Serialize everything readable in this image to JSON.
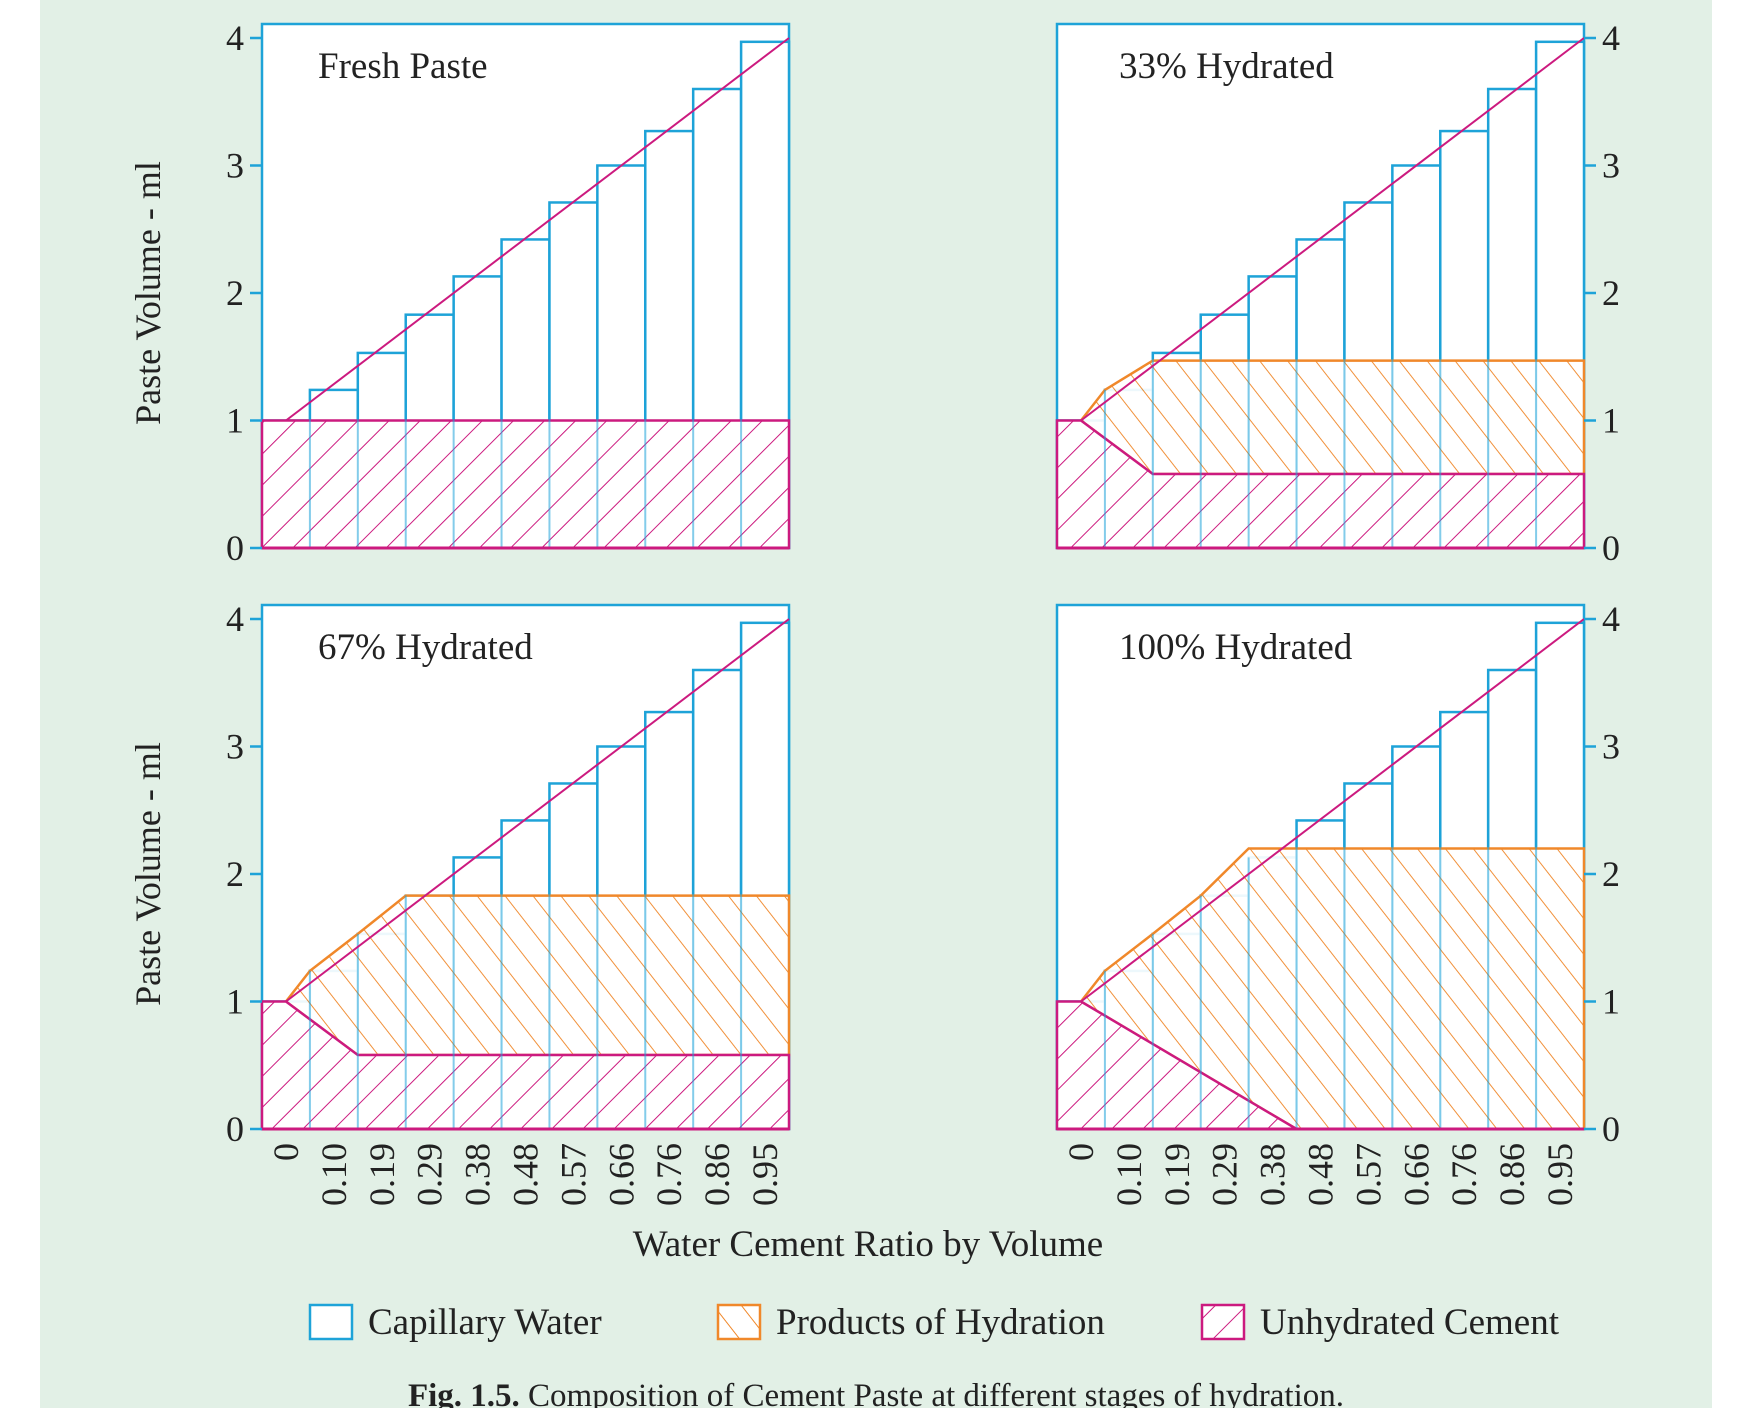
{
  "colors": {
    "background": "#e2f0e6",
    "capillary_water": "#1ea3d8",
    "products_of_hydration": "#f0882a",
    "unhydrated_cement": "#cc1a7f",
    "text": "#222222"
  },
  "chart_data": [
    {
      "type": "bar",
      "title": "Fresh Paste",
      "ylabel": "Paste Volume - ml",
      "xlabel": "",
      "ylim": [
        0,
        4
      ],
      "yticks": [
        "0",
        "1",
        "2",
        "3",
        "4"
      ],
      "y_axis_side": "left",
      "categories": [
        "0",
        "0.10",
        "0.19",
        "0.29",
        "0.38",
        "0.48",
        "0.57",
        "0.66",
        "0.76",
        "0.86",
        "0.95"
      ],
      "total_values": [
        1.0,
        1.24,
        1.53,
        1.83,
        2.13,
        2.42,
        2.71,
        3.0,
        3.27,
        3.6,
        3.97
      ],
      "unhydrated_cement": 1.0,
      "products_of_hydration_top": [
        1.0,
        1.0,
        1.0,
        1.0,
        1.0,
        1.0,
        1.0,
        1.0,
        1.0,
        1.0,
        1.0
      ]
    },
    {
      "type": "bar",
      "title": "33% Hydrated",
      "ylabel": "",
      "xlabel": "",
      "ylim": [
        0,
        4
      ],
      "yticks": [
        "0",
        "1",
        "2",
        "3",
        "4"
      ],
      "y_axis_side": "right",
      "categories": [
        "0",
        "0.10",
        "0.19",
        "0.29",
        "0.38",
        "0.48",
        "0.57",
        "0.66",
        "0.76",
        "0.86",
        "0.95"
      ],
      "total_values": [
        1.0,
        1.24,
        1.53,
        1.83,
        2.13,
        2.42,
        2.71,
        3.0,
        3.27,
        3.6,
        3.97
      ],
      "unhydrated_cement": 0.58,
      "products_of_hydration_top": [
        1.0,
        1.24,
        1.47,
        1.47,
        1.47,
        1.47,
        1.47,
        1.47,
        1.47,
        1.47,
        1.47
      ]
    },
    {
      "type": "bar",
      "title": "67% Hydrated",
      "ylabel": "Paste Volume - ml",
      "xlabel": "",
      "ylim": [
        0,
        4
      ],
      "yticks": [
        "0",
        "1",
        "2",
        "3",
        "4"
      ],
      "y_axis_side": "left",
      "categories": [
        "0",
        "0.10",
        "0.19",
        "0.29",
        "0.38",
        "0.48",
        "0.57",
        "0.66",
        "0.76",
        "0.86",
        "0.95"
      ],
      "total_values": [
        1.0,
        1.24,
        1.53,
        1.83,
        2.13,
        2.42,
        2.71,
        3.0,
        3.27,
        3.6,
        3.97
      ],
      "unhydrated_cement": 0.58,
      "products_of_hydration_top": [
        1.0,
        1.24,
        1.53,
        1.83,
        1.83,
        1.83,
        1.83,
        1.83,
        1.83,
        1.83,
        1.83
      ]
    },
    {
      "type": "bar",
      "title": "100% Hydrated",
      "ylabel": "",
      "xlabel": "",
      "ylim": [
        0,
        4
      ],
      "yticks": [
        "0",
        "1",
        "2",
        "3",
        "4"
      ],
      "y_axis_side": "right",
      "categories": [
        "0",
        "0.10",
        "0.19",
        "0.29",
        "0.38",
        "0.48",
        "0.57",
        "0.66",
        "0.76",
        "0.86",
        "0.95"
      ],
      "total_values": [
        1.0,
        1.24,
        1.53,
        1.83,
        2.13,
        2.42,
        2.71,
        3.0,
        3.27,
        3.6,
        3.97
      ],
      "unhydrated_cement": 0.0,
      "products_of_hydration_top": [
        1.0,
        1.24,
        1.53,
        1.83,
        2.2,
        2.2,
        2.2,
        2.2,
        2.2,
        2.2,
        2.2
      ]
    }
  ],
  "xlabel": "Water Cement Ratio by Volume",
  "legend": [
    {
      "key": "capillary_water",
      "label": "Capillary Water"
    },
    {
      "key": "products_of_hydration",
      "label": "Products of Hydration"
    },
    {
      "key": "unhydrated_cement",
      "label": "Unhydrated Cement"
    }
  ],
  "caption": {
    "bold": "Fig. 1.5.",
    "text": " Composition of Cement Paste at different stages of hydration."
  }
}
